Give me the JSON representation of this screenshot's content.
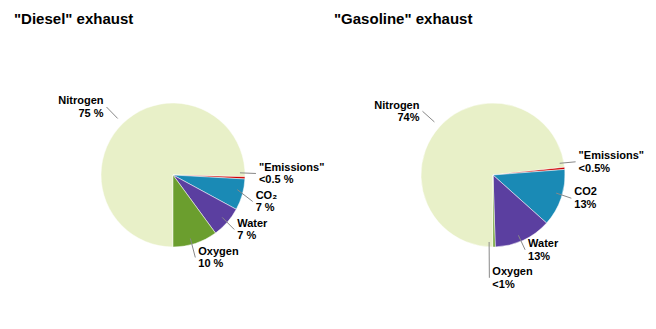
{
  "chart_data": [
    {
      "type": "pie",
      "title": "\"Diesel\" exhaust",
      "categories": [
        "Nitrogen",
        "\"Emissions\"",
        "CO₂",
        "Water",
        "Oxygen"
      ],
      "values": [
        75,
        0.5,
        7,
        7,
        10
      ],
      "value_labels": [
        "75 %",
        "<0.5 %",
        "7 %",
        "7 %",
        "10 %"
      ],
      "colors": [
        "#e8f0c8",
        "#cc0000",
        "#1a8ab5",
        "#5b3fa0",
        "#6b9e2e"
      ],
      "data_labels": true
    },
    {
      "type": "pie",
      "title": "\"Gasoline\" exhaust",
      "categories": [
        "Nitrogen",
        "\"Emissions\"",
        "CO2",
        "Water",
        "Oxygen"
      ],
      "values": [
        74,
        0.5,
        13,
        13,
        0.5
      ],
      "value_labels": [
        "74%",
        "<0.5%",
        "13%",
        "13%",
        "<1%"
      ],
      "colors": [
        "#e8f0c8",
        "#cc0000",
        "#1a8ab5",
        "#5b3fa0",
        "#6b9e2e"
      ],
      "data_labels": true
    }
  ]
}
